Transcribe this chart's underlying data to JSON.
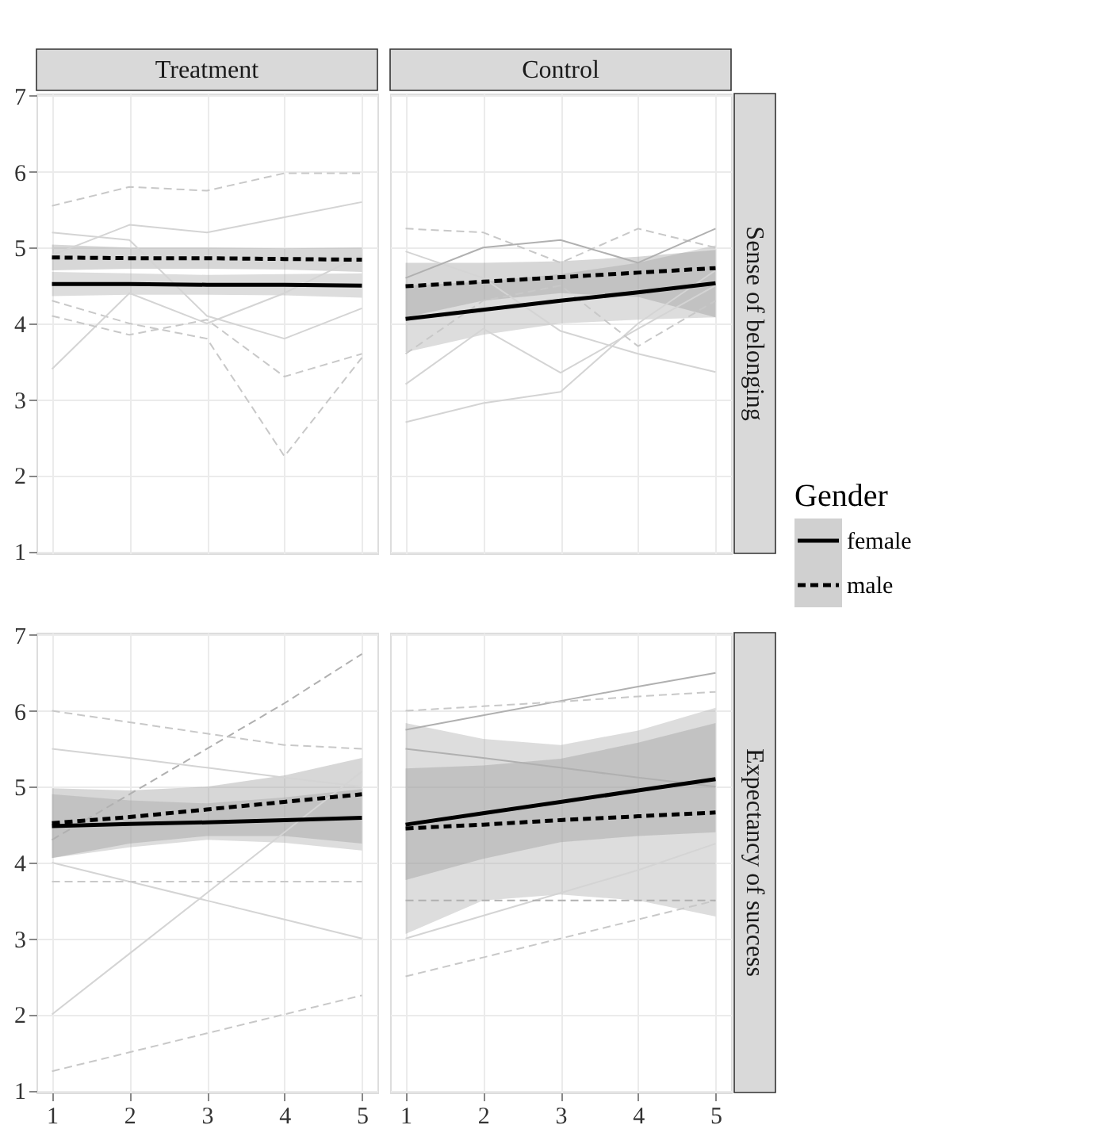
{
  "chart_data": [
    {
      "type": "line",
      "title": "Treatment",
      "x": [
        1,
        2,
        3,
        4,
        5
      ],
      "xlim": [
        0.8,
        5.2
      ],
      "ylim": [
        0.97,
        7.03
      ],
      "xticks": [
        1,
        2,
        3,
        4,
        5
      ],
      "yticks": [
        1,
        2,
        3,
        4,
        5,
        6,
        7
      ],
      "grid": true,
      "tick_labels": "y",
      "series": [
        {
          "color": "#c8c8c8",
          "line_style": "dashed",
          "values": [
            5.55,
            5.8,
            5.75,
            5.98,
            5.98
          ]
        },
        {
          "color": "#c8c8c8",
          "line_style": "dashed",
          "values": [
            4.3,
            4.0,
            3.8,
            2.25,
            3.55
          ]
        },
        {
          "color": "#d4d4d4",
          "line_style": "solid",
          "values": [
            3.4,
            4.4,
            4.0,
            4.4,
            4.9
          ]
        },
        {
          "color": "#d4d4d4",
          "line_style": "solid",
          "values": [
            5.2,
            5.1,
            4.1,
            3.8,
            4.2
          ]
        },
        {
          "color": "#d4d4d4",
          "line_style": "solid",
          "values": [
            4.9,
            5.3,
            5.2,
            5.4,
            5.6
          ]
        },
        {
          "color": "#c8c8c8",
          "line_style": "dashed",
          "values": [
            4.1,
            3.85,
            4.05,
            3.3,
            3.6
          ]
        },
        {
          "color": "#000000",
          "line_style": "solid",
          "values": [
            4.52,
            4.52,
            4.51,
            4.51,
            4.5
          ],
          "lower": [
            4.36,
            4.38,
            4.38,
            4.37,
            4.34
          ],
          "upper": [
            4.68,
            4.66,
            4.64,
            4.65,
            4.66
          ]
        },
        {
          "color": "#000000",
          "line_style": "dashed",
          "values": [
            4.87,
            4.86,
            4.86,
            4.85,
            4.84
          ],
          "lower": [
            4.7,
            4.72,
            4.72,
            4.71,
            4.68
          ],
          "upper": [
            5.04,
            5.0,
            5.0,
            4.99,
            5.0
          ]
        }
      ]
    },
    {
      "type": "line",
      "title": "Control",
      "y2label": "Sense of belonging",
      "legend_title": "Gender",
      "legend": "right",
      "x": [
        1,
        2,
        3,
        4,
        5
      ],
      "xlim": [
        0.8,
        5.2
      ],
      "ylim": [
        0.97,
        7.03
      ],
      "xticks": [
        1,
        2,
        3,
        4,
        5
      ],
      "yticks": [
        1,
        2,
        3,
        4,
        5,
        6,
        7
      ],
      "grid": true,
      "tick_labels": false,
      "series": [
        {
          "color": "#d4d4d4",
          "line_style": "solid",
          "values": [
            3.2,
            3.93,
            3.35,
            3.93,
            4.5
          ]
        },
        {
          "color": "#d4d4d4",
          "line_style": "solid",
          "values": [
            2.7,
            2.95,
            3.1,
            4.0,
            4.7
          ]
        },
        {
          "color": "#c8c8c8",
          "line_style": "dashed",
          "values": [
            5.25,
            5.2,
            4.8,
            5.25,
            5.0
          ]
        },
        {
          "color": "#d4d4d4",
          "line_style": "solid",
          "values": [
            4.95,
            4.6,
            3.9,
            3.6,
            3.36
          ]
        },
        {
          "color": "#b0b0b0",
          "line_style": "solid",
          "values": [
            4.6,
            5.0,
            5.1,
            4.8,
            5.25
          ]
        },
        {
          "color": "#c8c8c8",
          "line_style": "dashed",
          "values": [
            3.6,
            4.3,
            4.5,
            3.7,
            4.3
          ]
        },
        {
          "name": "female",
          "color": "#000000",
          "line_style": "solid",
          "values": [
            4.06,
            4.18,
            4.3,
            4.41,
            4.53
          ],
          "lower": [
            3.62,
            3.85,
            4.0,
            4.05,
            4.08
          ],
          "upper": [
            4.5,
            4.55,
            4.65,
            4.8,
            5.03
          ]
        },
        {
          "name": "male",
          "color": "#000000",
          "line_style": "dashed",
          "values": [
            4.49,
            4.55,
            4.61,
            4.67,
            4.73
          ],
          "lower": [
            4.08,
            4.3,
            4.4,
            4.35,
            4.08
          ],
          "upper": [
            4.8,
            4.8,
            4.82,
            4.88,
            4.97
          ]
        }
      ]
    },
    {
      "type": "line",
      "x": [
        1,
        2,
        3,
        4,
        5
      ],
      "xlim": [
        0.8,
        5.2
      ],
      "ylim": [
        0.97,
        7.03
      ],
      "xticks": [
        1,
        2,
        3,
        4,
        5
      ],
      "yticks": [
        1,
        2,
        3,
        4,
        5,
        6,
        7
      ],
      "grid": true,
      "series": [
        {
          "color": "#d4d4d4",
          "line_style": "solid",
          "values": [
            2.0,
            2.8,
            3.6,
            4.4,
            5.2
          ]
        },
        {
          "color": "#c8c8c8",
          "line_style": "dashed",
          "values": [
            1.25,
            1.5,
            1.75,
            2.0,
            2.25
          ]
        },
        {
          "color": "#b0b0b0",
          "line_style": "dashed",
          "values": [
            4.3,
            4.9,
            5.5,
            6.1,
            6.75
          ]
        },
        {
          "color": "#d4d4d4",
          "line_style": "solid",
          "values": [
            4.0,
            3.75,
            3.5,
            3.25,
            3.0
          ]
        },
        {
          "color": "#c8c8c8",
          "line_style": "dashed",
          "values": [
            6.0,
            5.85,
            5.7,
            5.55,
            5.5
          ]
        },
        {
          "color": "#c8c8c8",
          "line_style": "dashed",
          "values": [
            3.75,
            3.75,
            3.75,
            3.75,
            3.75
          ]
        },
        {
          "color": "#d4d4d4",
          "line_style": "solid",
          "values": [
            5.5,
            5.38,
            5.25,
            5.12,
            5.0
          ]
        },
        {
          "color": "#000000",
          "line_style": "solid",
          "values": [
            4.48,
            4.51,
            4.53,
            4.56,
            4.59
          ],
          "lower": [
            4.06,
            4.2,
            4.3,
            4.26,
            4.16
          ],
          "upper": [
            4.9,
            4.82,
            4.78,
            4.86,
            4.97
          ]
        },
        {
          "color": "#000000",
          "line_style": "dashed",
          "values": [
            4.52,
            4.6,
            4.7,
            4.8,
            4.9
          ],
          "lower": [
            4.06,
            4.25,
            4.35,
            4.35,
            4.25
          ],
          "upper": [
            4.98,
            4.95,
            5.0,
            5.15,
            5.38
          ]
        }
      ]
    },
    {
      "type": "line",
      "y2label": "Expectancy of success",
      "x": [
        1,
        2,
        3,
        4,
        5
      ],
      "xlim": [
        0.8,
        5.2
      ],
      "ylim": [
        0.97,
        7.03
      ],
      "xticks": [
        1,
        2,
        3,
        4,
        5
      ],
      "yticks": [
        1,
        2,
        3,
        4,
        5,
        6,
        7
      ],
      "grid": true,
      "tick_labels": "x",
      "series": [
        {
          "color": "#b0b0b0",
          "line_style": "solid",
          "values": [
            5.75,
            5.94,
            6.13,
            6.32,
            6.5
          ]
        },
        {
          "color": "#c8c8c8",
          "line_style": "dashed",
          "values": [
            6.0,
            6.06,
            6.12,
            6.19,
            6.25
          ]
        },
        {
          "color": "#d4d4d4",
          "line_style": "solid",
          "values": [
            3.0,
            3.3,
            3.6,
            3.9,
            4.25
          ]
        },
        {
          "color": "#c8c8c8",
          "line_style": "dashed",
          "values": [
            2.5,
            2.75,
            3.0,
            3.25,
            3.5
          ]
        },
        {
          "color": "#b0b0b0",
          "line_style": "solid",
          "values": [
            5.5,
            5.38,
            5.25,
            5.12,
            5.0
          ]
        },
        {
          "color": "#b0b0b0",
          "line_style": "dashed",
          "values": [
            3.5,
            3.5,
            3.5,
            3.5,
            3.5
          ]
        },
        {
          "color": "#000000",
          "line_style": "solid",
          "values": [
            4.5,
            4.65,
            4.8,
            4.95,
            5.1
          ],
          "lower": [
            3.06,
            3.5,
            3.58,
            3.5,
            3.29
          ],
          "upper": [
            5.84,
            5.63,
            5.55,
            5.74,
            6.04
          ]
        },
        {
          "color": "#000000",
          "line_style": "dashed",
          "values": [
            4.45,
            4.5,
            4.56,
            4.61,
            4.66
          ],
          "lower": [
            3.77,
            4.05,
            4.27,
            4.35,
            4.4
          ],
          "upper": [
            5.24,
            5.28,
            5.37,
            5.58,
            5.84
          ]
        }
      ]
    }
  ]
}
